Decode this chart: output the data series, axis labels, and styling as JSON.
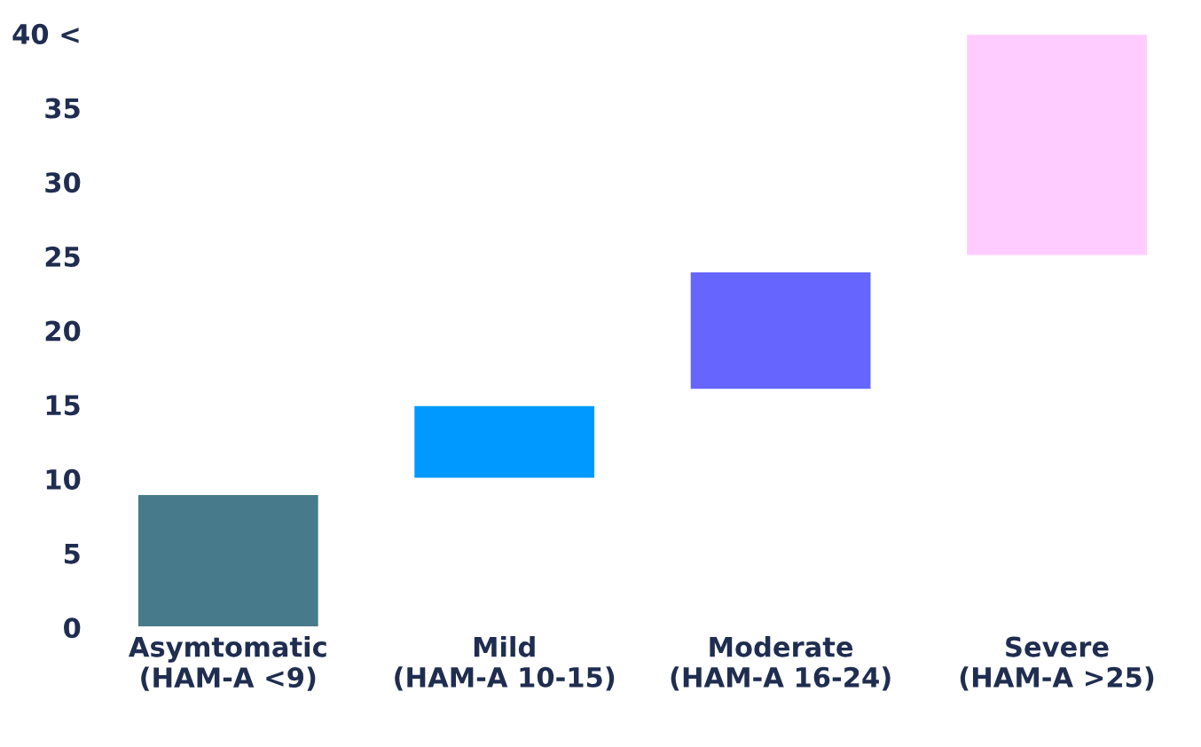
{
  "chart_data": {
    "type": "bar",
    "categories": [
      "Asymtomatic\n(HAM-A <9)",
      "Mild\n(HAM-A 10-15)",
      "Moderate\n(HAM-A 16-24)",
      "Severe\n(HAM-A >25)"
    ],
    "base": [
      0,
      10,
      16,
      25
    ],
    "values": [
      9,
      5,
      8,
      15
    ],
    "colors": [
      "#477b8b",
      "#0099ff",
      "#6666ff",
      "#ffccff"
    ],
    "ylim": [
      0,
      40
    ],
    "yticks": [
      0,
      5,
      10,
      15,
      20,
      25,
      30,
      35,
      {
        "value": 40,
        "label": "40 <"
      }
    ],
    "grid": false
  }
}
